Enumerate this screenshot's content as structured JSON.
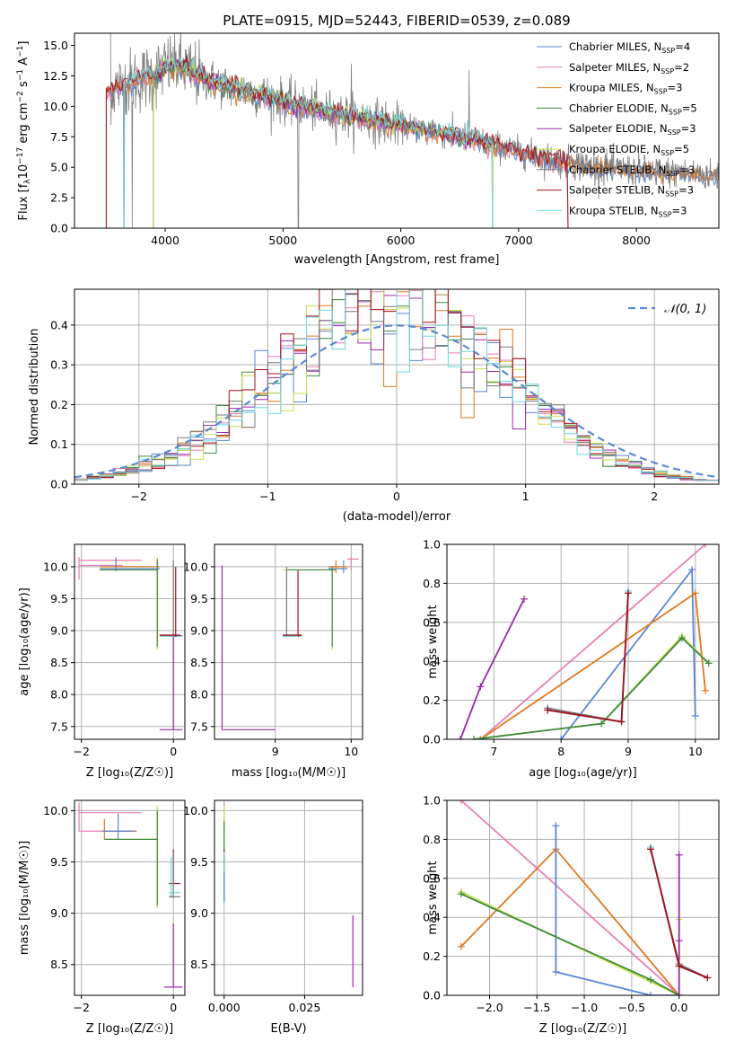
{
  "colors": {
    "chabrier_miles": "#5b85d6",
    "salpeter_miles": "#e77fb5",
    "kroupa_miles": "#e0781f",
    "chabrier_elodie": "#3d8a40",
    "salpeter_elodie": "#9b2aad",
    "kroupa_elodie": "#c9e04e",
    "chabrier_stelib": "#7a7a7a",
    "salpeter_stelib": "#a30f1a",
    "kroupa_stelib": "#6fd8e0",
    "data": "#808080",
    "gauss": "#5b8bd4",
    "grid": "#b0b0b0"
  },
  "chart_data": [
    {
      "id": "spectrum",
      "type": "line",
      "title": "PLATE=0915, MJD=52443, FIBERID=0539, z=0.089",
      "xlabel": "wavelength [Angstrom, rest frame]",
      "ylabel": "Flux [fλ 10⁻¹⁷ erg cm⁻² s⁻¹ A⁻¹]",
      "xlim": [
        3230,
        8700
      ],
      "ylim": [
        0,
        16
      ],
      "xticks": [
        4000,
        5000,
        6000,
        7000,
        8000
      ],
      "yticks": [
        0.0,
        2.5,
        5.0,
        7.5,
        10.0,
        12.5,
        15.0
      ],
      "grid": false,
      "legend_position": "top-right",
      "legend": [
        {
          "label": "Chabrier MILES, N",
          "sub": "SSP",
          "tail": "=4",
          "color": "chabrier_miles"
        },
        {
          "label": "Salpeter MILES, N",
          "sub": "SSP",
          "tail": "=2",
          "color": "salpeter_miles"
        },
        {
          "label": "Kroupa MILES, N",
          "sub": "SSP",
          "tail": "=3",
          "color": "kroupa_miles"
        },
        {
          "label": "Chabrier ELODIE, N",
          "sub": "SSP",
          "tail": "=5",
          "color": "chabrier_elodie"
        },
        {
          "label": "Salpeter ELODIE, N",
          "sub": "SSP",
          "tail": "=3",
          "color": "salpeter_elodie"
        },
        {
          "label": "Kroupa ELODIE, N",
          "sub": "SSP",
          "tail": "=5",
          "color": "kroupa_elodie"
        },
        {
          "label": "Chabrier STELIB, N",
          "sub": "SSP",
          "tail": "=3",
          "color": "chabrier_stelib"
        },
        {
          "label": "Salpeter STELIB, N",
          "sub": "SSP",
          "tail": "=3",
          "color": "salpeter_stelib"
        },
        {
          "label": "Kroupa STELIB, N",
          "sub": "SSP",
          "tail": "=3",
          "color": "kroupa_stelib"
        }
      ],
      "continuum": {
        "x": [
          3500,
          3700,
          3900,
          4000,
          4100,
          4300,
          4500,
          4800,
          5000,
          5200,
          5500,
          5800,
          6000,
          6300,
          6500,
          6800,
          7000,
          7200,
          7400,
          7600,
          7800,
          8000,
          8200,
          8400,
          8700
        ],
        "y": [
          11.2,
          12.0,
          12.5,
          13.2,
          13.4,
          12.4,
          11.7,
          11.0,
          10.4,
          9.9,
          9.3,
          8.8,
          8.4,
          7.9,
          7.5,
          6.8,
          6.3,
          5.8,
          5.4,
          5.1,
          4.9,
          4.7,
          4.6,
          4.5,
          4.3
        ]
      },
      "model_cutoffs": [
        {
          "color": "salpeter_miles",
          "start": 3500,
          "end": 7420
        },
        {
          "color": "salpeter_stelib",
          "start": 3500,
          "end": 7420
        },
        {
          "color": "kroupa_elodie",
          "start": 3900,
          "end": 6780
        },
        {
          "color": "chabrier_elodie",
          "start": 3900,
          "end": 6780
        },
        {
          "color": "salpeter_elodie",
          "start": 3900,
          "end": 6780
        },
        {
          "color": "kroupa_stelib",
          "start": 3650,
          "end": 6780
        }
      ]
    },
    {
      "id": "residuals",
      "type": "line",
      "xlabel": "(data-model)/error",
      "ylabel": "Normed distribution",
      "xlim": [
        -2.5,
        2.5
      ],
      "ylim": [
        0,
        0.49
      ],
      "xticks": [
        -2,
        -1,
        0,
        1,
        2
      ],
      "yticks": [
        0.0,
        0.1,
        0.2,
        0.3,
        0.4
      ],
      "grid": true,
      "legend_position": "top-right",
      "legend": [
        {
          "label": "𝒩(0, 1)"
        }
      ],
      "bin_width": 0.1
    },
    {
      "id": "age_vs_Z",
      "type": "scatter",
      "xlabel": "Z [log₁₀(Z/Z☉)]",
      "ylabel": "age  [log₁₀(age/yr)]",
      "xlim": [
        -2.15,
        0.25
      ],
      "ylim": [
        7.3,
        10.35
      ],
      "xticks": [
        -2,
        0
      ],
      "yticks": [
        7.5,
        8.0,
        8.5,
        9.0,
        9.5,
        10.0
      ],
      "grid": true
    },
    {
      "id": "age_vs_mass",
      "type": "scatter",
      "xlabel": "mass [log₁₀(M/M☉)]",
      "xlim": [
        8.2,
        10.15
      ],
      "ylim": [
        7.3,
        10.35
      ],
      "xticks": [
        9,
        10
      ],
      "yticks": [
        7.5,
        8.0,
        8.5,
        9.0,
        9.5,
        10.0
      ],
      "grid": true
    },
    {
      "id": "weight_vs_age",
      "type": "line",
      "xlabel": "age  [log₁₀(age/yr)]",
      "ylabel": "mass weight",
      "xlim": [
        6.3,
        10.35
      ],
      "ylim": [
        0,
        1.0
      ],
      "xticks": [
        7,
        8,
        9,
        10
      ],
      "yticks": [
        0.0,
        0.2,
        0.4,
        0.6,
        0.8,
        1.0
      ],
      "grid": true,
      "series": [
        {
          "color": "salpeter_elodie",
          "x": [
            6.5,
            6.8,
            7.45
          ],
          "y": [
            0.0,
            0.27,
            0.72
          ]
        },
        {
          "color": "chabrier_miles",
          "x": [
            8.0,
            9.95,
            10.0
          ],
          "y": [
            0.0,
            0.87,
            0.12
          ]
        },
        {
          "color": "salpeter_miles",
          "x": [
            6.8,
            10.15
          ],
          "y": [
            0.0,
            1.0
          ]
        },
        {
          "color": "kroupa_miles",
          "x": [
            6.8,
            10.0,
            10.15
          ],
          "y": [
            0.0,
            0.75,
            0.25
          ]
        },
        {
          "color": "kroupa_elodie",
          "x": [
            6.7,
            8.6,
            9.8,
            10.2
          ],
          "y": [
            0.0,
            0.08,
            0.53,
            0.39
          ]
        },
        {
          "color": "chabrier_elodie",
          "x": [
            6.7,
            8.6,
            9.8,
            10.2
          ],
          "y": [
            0.0,
            0.08,
            0.52,
            0.39
          ]
        },
        {
          "color": "kroupa_stelib",
          "x": [
            7.8,
            8.9,
            9.0
          ],
          "y": [
            0.15,
            0.09,
            0.76
          ]
        },
        {
          "color": "chabrier_stelib",
          "x": [
            7.8,
            8.9,
            9.0
          ],
          "y": [
            0.16,
            0.09,
            0.75
          ]
        },
        {
          "color": "salpeter_stelib",
          "x": [
            7.8,
            8.9,
            9.0
          ],
          "y": [
            0.15,
            0.09,
            0.75
          ]
        }
      ]
    },
    {
      "id": "mass_vs_Z",
      "type": "scatter",
      "xlabel": "Z [log₁₀(Z/Z☉)]",
      "ylabel": "mass [log₁₀(M/M☉)]",
      "xlim": [
        -2.15,
        0.25
      ],
      "ylim": [
        8.2,
        10.1
      ],
      "xticks": [
        -2,
        0
      ],
      "yticks": [
        8.5,
        9.0,
        9.5,
        10.0
      ],
      "grid": true
    },
    {
      "id": "mass_vs_ebv",
      "type": "scatter",
      "xlabel": "E(B-V)",
      "xlim": [
        -0.003,
        0.043
      ],
      "ylim": [
        8.2,
        10.1
      ],
      "xticks": [
        0.0,
        0.025
      ],
      "xticklabels": [
        "0.000",
        "0.025"
      ],
      "yticks": [
        8.5,
        9.0,
        9.5,
        10.0
      ],
      "grid": true
    },
    {
      "id": "weight_vs_Z",
      "type": "line",
      "xlabel": "Z [log₁₀(Z/Z☉)]",
      "ylabel": "mass weight",
      "xlim": [
        -2.45,
        0.42
      ],
      "ylim": [
        0,
        1.0
      ],
      "xticks": [
        -2.0,
        -1.5,
        -1.0,
        -0.5,
        0.0
      ],
      "yticks": [
        0.0,
        0.2,
        0.4,
        0.6,
        0.8,
        1.0
      ],
      "grid": true,
      "series": [
        {
          "color": "salpeter_miles",
          "x": [
            -2.3,
            0.0
          ],
          "y": [
            1.0,
            0.0
          ]
        },
        {
          "color": "kroupa_miles",
          "x": [
            -2.3,
            -1.3,
            0.0
          ],
          "y": [
            0.25,
            0.75,
            0.0
          ]
        },
        {
          "color": "chabrier_miles",
          "x": [
            -1.3,
            -1.3,
            -0.3,
            0.0
          ],
          "y": [
            0.87,
            0.12,
            0.0,
            0.0
          ]
        },
        {
          "color": "kroupa_elodie",
          "x": [
            -2.3,
            0.0,
            0.0
          ],
          "y": [
            0.53,
            0.0,
            0.39
          ]
        },
        {
          "color": "chabrier_elodie",
          "x": [
            -2.3,
            -0.3,
            0.0
          ],
          "y": [
            0.52,
            0.08,
            0.0
          ]
        },
        {
          "color": "salpeter_elodie",
          "x": [
            0.0,
            0.0,
            0.0
          ],
          "y": [
            0.72,
            0.28,
            0.0
          ]
        },
        {
          "color": "kroupa_stelib",
          "x": [
            -0.3,
            0.0,
            0.3
          ],
          "y": [
            0.76,
            0.15,
            0.09
          ]
        },
        {
          "color": "chabrier_stelib",
          "x": [
            -0.3,
            0.0,
            0.3
          ],
          "y": [
            0.75,
            0.16,
            0.09
          ]
        },
        {
          "color": "salpeter_stelib",
          "x": [
            -0.3,
            0.0,
            0.3
          ],
          "y": [
            0.75,
            0.15,
            0.09
          ]
        }
      ]
    }
  ]
}
